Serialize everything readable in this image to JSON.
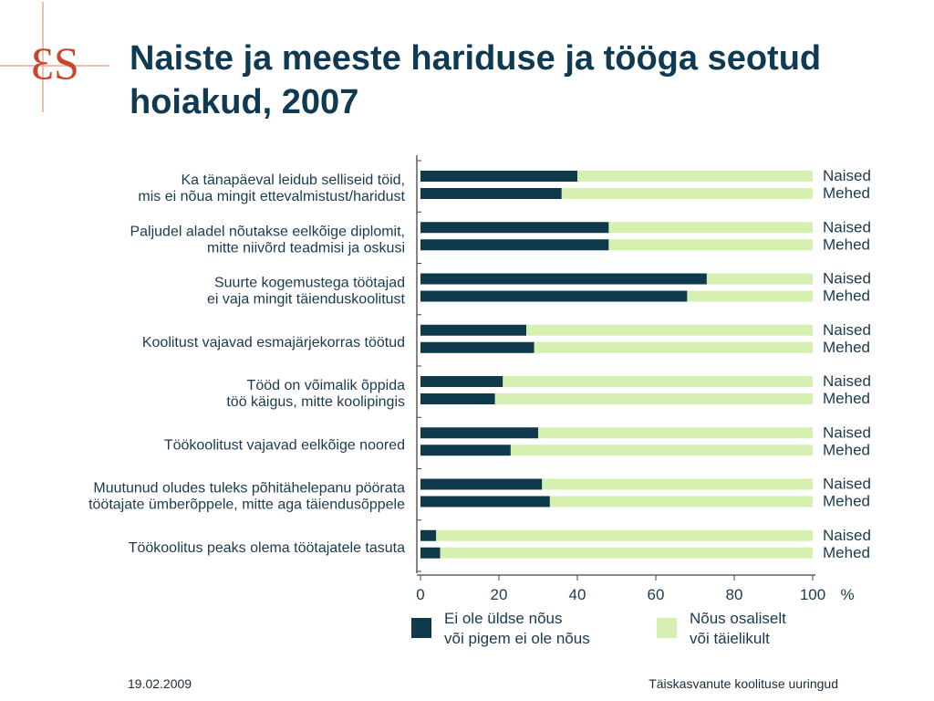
{
  "slide": {
    "title": "Naiste ja meeste hariduse ja tööga seotud hoiakud, 2007",
    "footer_date": "19.02.2009",
    "footer_source": "Täiskasvanute koolituse uuringud",
    "logo_text": "ƐS"
  },
  "colors": {
    "title": "#0f3a52",
    "disagree": "#0f3a4c",
    "agree": "#d5f0b0",
    "logo": "#c8472c"
  },
  "chart_data": {
    "type": "bar",
    "orientation": "horizontal",
    "stacked": true,
    "xlim": [
      0,
      100
    ],
    "x_ticks": [
      "0",
      "20",
      "40",
      "60",
      "80",
      "100"
    ],
    "x_unit": "%",
    "grid": false,
    "legend_position": "bottom",
    "group_labels": [
      "Naised",
      "Mehed"
    ],
    "series": [
      {
        "name": "Ei ole üldse nõus\nvõi pigem ei ole nõus"
      },
      {
        "name": "Nõus osaliselt\nvõi täielikult"
      }
    ],
    "categories": [
      {
        "label": "Ka tänapäeval leidub selliseid töid,\nmis ei nõua mingit ettevalmistust/haridust",
        "naised": 40,
        "mehed": 36
      },
      {
        "label": "Paljudel aladel nõutakse eelkõige diplomit,\nmitte niivõrd teadmisi ja oskusi",
        "naised": 48,
        "mehed": 48
      },
      {
        "label": "Suurte kogemustega töötajad\nei vaja mingit täienduskoolitust",
        "naised": 73,
        "mehed": 68
      },
      {
        "label": "Koolitust vajavad esmajärjekorras töötud",
        "naised": 27,
        "mehed": 29
      },
      {
        "label": "Tööd on võimalik õppida\ntöö käigus, mitte koolipingis",
        "naised": 21,
        "mehed": 19
      },
      {
        "label": "Töökoolitust vajavad eelkõige noored",
        "naised": 30,
        "mehed": 23
      },
      {
        "label": "Muutunud oludes tuleks põhitähelepanu pöörata\ntöötajate ümberõppele, mitte aga täiendusõppele",
        "naised": 31,
        "mehed": 33
      },
      {
        "label": "Töökoolitus peaks olema töötajatele tasuta",
        "naised": 4,
        "mehed": 5
      }
    ]
  }
}
